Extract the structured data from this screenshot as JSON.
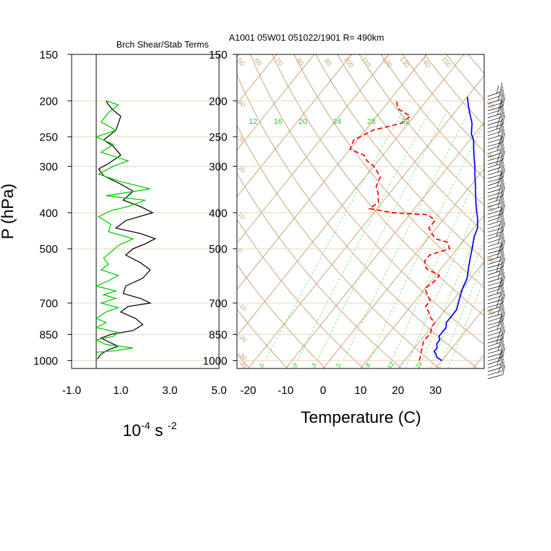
{
  "chart_data": [
    {
      "panel": "shear-stability",
      "type": "line",
      "title": "Brch Shear/Stab Terms",
      "xlabel": "10-4 s -2",
      "xlabel_parts": {
        "base": "10",
        "exp1": "-4",
        "mid": " s ",
        "exp2": "-2"
      },
      "ylabel": "P (hPa)",
      "xlim": [
        -1.0,
        5.0
      ],
      "ylim": [
        1050,
        150
      ],
      "y_log_scale": true,
      "xticks": [
        "-1.0",
        "1.0",
        "3.0",
        "5.0"
      ],
      "xtick_values": [
        -1.0,
        1.0,
        3.0,
        5.0
      ],
      "yticks": [
        150,
        200,
        250,
        300,
        400,
        500,
        700,
        850,
        1000
      ],
      "series": [
        {
          "color": "#000000",
          "points": [
            [
              0.05,
              990
            ],
            [
              0.2,
              960
            ],
            [
              0.5,
              935
            ],
            [
              0.9,
              915
            ],
            [
              0.5,
              890
            ],
            [
              0.2,
              870
            ],
            [
              0.6,
              850
            ],
            [
              1.5,
              830
            ],
            [
              1.9,
              800
            ],
            [
              1.6,
              770
            ],
            [
              1.0,
              740
            ],
            [
              1.3,
              715
            ],
            [
              2.2,
              700
            ],
            [
              1.8,
              680
            ],
            [
              1.1,
              660
            ],
            [
              1.2,
              630
            ],
            [
              1.9,
              600
            ],
            [
              2.2,
              570
            ],
            [
              1.8,
              545
            ],
            [
              1.2,
              520
            ],
            [
              1.5,
              500
            ],
            [
              2.0,
              485
            ],
            [
              2.4,
              470
            ],
            [
              1.8,
              455
            ],
            [
              0.8,
              440
            ],
            [
              1.2,
              420
            ],
            [
              2.3,
              400
            ],
            [
              1.8,
              385
            ],
            [
              1.1,
              370
            ],
            [
              1.5,
              350
            ],
            [
              1.0,
              335
            ],
            [
              0.3,
              318
            ],
            [
              0.1,
              305
            ],
            [
              0.5,
              295
            ],
            [
              1.0,
              280
            ],
            [
              0.7,
              265
            ],
            [
              0.3,
              255
            ],
            [
              0.8,
              240
            ],
            [
              0.9,
              230
            ],
            [
              1.0,
              220
            ],
            [
              0.7,
              212
            ],
            [
              0.5,
              205
            ],
            [
              0.4,
              200
            ]
          ]
        },
        {
          "color": "#00cc00",
          "points": [
            [
              0.0,
              950
            ],
            [
              0.8,
              940
            ],
            [
              1.5,
              925
            ],
            [
              0.4,
              905
            ],
            [
              0.0,
              880
            ],
            [
              0.7,
              860
            ],
            [
              0.9,
              840
            ],
            [
              0.0,
              815
            ],
            [
              0.4,
              790
            ],
            [
              0.0,
              770
            ],
            [
              0.4,
              740
            ],
            [
              0.9,
              720
            ],
            [
              0.2,
              700
            ],
            [
              0.8,
              680
            ],
            [
              0.3,
              665
            ],
            [
              0.8,
              650
            ],
            [
              0.0,
              630
            ],
            [
              0.5,
              610
            ],
            [
              0.9,
              590
            ],
            [
              0.2,
              570
            ],
            [
              0.5,
              550
            ],
            [
              0.3,
              530
            ],
            [
              0.6,
              510
            ],
            [
              0.9,
              490
            ],
            [
              1.5,
              470
            ],
            [
              0.5,
              450
            ],
            [
              0.6,
              430
            ],
            [
              0.1,
              410
            ],
            [
              0.6,
              395
            ],
            [
              1.3,
              385
            ],
            [
              2.0,
              370
            ],
            [
              0.4,
              360
            ],
            [
              2.2,
              345
            ],
            [
              1.0,
              330
            ],
            [
              0.1,
              315
            ],
            [
              0.7,
              300
            ],
            [
              1.3,
              290
            ],
            [
              0.2,
              275
            ],
            [
              0.7,
              262
            ],
            [
              0.0,
              250
            ],
            [
              0.8,
              240
            ],
            [
              0.2,
              228
            ],
            [
              0.5,
              215
            ],
            [
              0.9,
              205
            ],
            [
              0.4,
              200
            ]
          ]
        }
      ]
    },
    {
      "panel": "skew-t",
      "type": "line",
      "title": "A1001 05W01 051022/1901 R= 490km",
      "xlabel": "Temperature (C)",
      "xlim": [
        -23,
        43
      ],
      "ylim": [
        1050,
        150
      ],
      "y_log_scale": true,
      "skew_deg_per_decade": 80,
      "xticks": [
        "-20",
        "-10",
        "0",
        "10",
        "20",
        "30"
      ],
      "xtick_values": [
        -20,
        -10,
        0,
        10,
        20,
        30
      ],
      "yticks": [
        150,
        200,
        250,
        300,
        400,
        500,
        700,
        850,
        1000
      ],
      "mixing_ratio_labels": [
        "12",
        "16",
        "20",
        "24",
        "28",
        "32"
      ],
      "mixing_ratio_label_x": [
        -20,
        -12,
        -4,
        7,
        18,
        29
      ],
      "mixing_ratio_bottom_labels": [
        "1",
        "2",
        "3",
        "5",
        "8",
        "12",
        "20"
      ],
      "mixing_ratio_bottom_label_x": [
        -16,
        -7,
        -2,
        4.5,
        12.5,
        18.5,
        26
      ],
      "theta_labels": [
        "50",
        "60",
        "70",
        "80",
        "90",
        "100",
        "110",
        "120",
        "130",
        "140",
        "150"
      ],
      "theta_label_x": [
        -24,
        -19,
        -13,
        -7,
        1,
        7,
        12,
        18,
        23,
        29,
        35
      ],
      "isotherm_labels_left": [
        "40",
        "30",
        "20",
        "10",
        "0",
        "-10",
        "-20",
        "-30",
        "-40"
      ],
      "isotherm_label_p": [
        200,
        250,
        300,
        400,
        500,
        700,
        850,
        950,
        1000
      ],
      "isotherm_labels_right": [
        "-70",
        "-60",
        "-50",
        "-40",
        "-30"
      ],
      "series": [
        {
          "name": "temperature",
          "color": "#0000ff",
          "style": "solid",
          "points": [
            [
              30,
              1000
            ],
            [
              28,
              980
            ],
            [
              27,
              960
            ],
            [
              26,
              945
            ],
            [
              26,
              925
            ],
            [
              25,
              900
            ],
            [
              25,
              880
            ],
            [
              24,
              860
            ],
            [
              24,
              840
            ],
            [
              24,
              815
            ],
            [
              23,
              790
            ],
            [
              23,
              760
            ],
            [
              23,
              730
            ],
            [
              22,
              700
            ],
            [
              21,
              670
            ],
            [
              20,
              640
            ],
            [
              19,
              600
            ],
            [
              17,
              560
            ],
            [
              15,
              520
            ],
            [
              14,
              500
            ],
            [
              12,
              465
            ],
            [
              11,
              440
            ],
            [
              9,
              415
            ],
            [
              7,
              395
            ],
            [
              5,
              375
            ],
            [
              3,
              355
            ],
            [
              1,
              335
            ],
            [
              -1,
              318
            ],
            [
              -3,
              300
            ],
            [
              -5,
              285
            ],
            [
              -7,
              270
            ],
            [
              -9,
              255
            ],
            [
              -11,
              245
            ],
            [
              -13,
              230
            ],
            [
              -16,
              215
            ],
            [
              -18,
              205
            ],
            [
              -20,
              195
            ]
          ]
        },
        {
          "name": "dewpoint",
          "color": "#ff0000",
          "style": "dashed",
          "points": [
            [
              24,
              1000
            ],
            [
              23,
              960
            ],
            [
              22,
              925
            ],
            [
              21,
              890
            ],
            [
              21,
              860
            ],
            [
              21,
              840
            ],
            [
              20,
              810
            ],
            [
              20,
              790
            ],
            [
              18,
              770
            ],
            [
              16,
              740
            ],
            [
              14,
              715
            ],
            [
              14,
              690
            ],
            [
              12,
              665
            ],
            [
              10,
              640
            ],
            [
              11,
              610
            ],
            [
              11,
              590
            ],
            [
              6,
              565
            ],
            [
              4,
              540
            ],
            [
              4,
              520
            ],
            [
              8,
              500
            ],
            [
              6,
              480
            ],
            [
              2,
              470
            ],
            [
              0,
              455
            ],
            [
              -2,
              440
            ],
            [
              -2,
              420
            ],
            [
              -5,
              405
            ],
            [
              -15,
              400
            ],
            [
              -22,
              390
            ],
            [
              -21,
              375
            ],
            [
              -23,
              355
            ],
            [
              -25,
              340
            ],
            [
              -26,
              320
            ],
            [
              -30,
              300
            ],
            [
              -33,
              290
            ],
            [
              -35,
              280
            ],
            [
              -40,
              270
            ],
            [
              -41,
              255
            ],
            [
              -38,
              240
            ],
            [
              -32,
              230
            ],
            [
              -31,
              220
            ],
            [
              -36,
              210
            ],
            [
              -38,
              200
            ]
          ]
        }
      ]
    }
  ],
  "wind_barbs": {
    "count": 80,
    "color": "#000000"
  }
}
